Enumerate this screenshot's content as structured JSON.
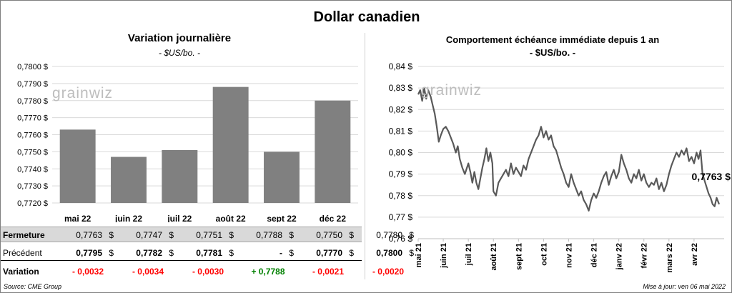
{
  "title": "Dollar canadien",
  "left_chart": {
    "title": "Variation  journalière",
    "subtitle": "- $US/bo. -",
    "watermark": "grainwiz"
  },
  "right_chart": {
    "title": "Comportement échéance immédiate depuis 1 an",
    "subtitle": "- $US/bo. -",
    "watermark": "grainwiz",
    "last_value_label": "0,7763 $"
  },
  "table": {
    "rows": [
      {
        "label": "Fermeture",
        "shaded": true,
        "values": [
          "0,7763",
          "0,7747",
          "0,7751",
          "0,7788",
          "0,7750",
          "0,7780"
        ]
      },
      {
        "label": "Précédent",
        "shaded": false,
        "values": [
          "0,7795",
          "0,7782",
          "0,7781",
          "-",
          "0,7770",
          "0,7800"
        ]
      }
    ],
    "currency": "$",
    "variation_label": "Variation",
    "variations": [
      "- 0,0032",
      "- 0,0034",
      "- 0,0030",
      "+ 0,7788",
      "- 0,0021",
      "- 0,0020"
    ]
  },
  "colors": {
    "bar": "#808080",
    "line": "#595959",
    "negative": "#ff0000",
    "positive": "#008000",
    "shaded_row": "#d9d9d9"
  },
  "footer": {
    "source": "Source: CME Group",
    "updated": "Mise à jour: ven 06 mai 2022"
  },
  "chart_data": [
    {
      "type": "bar",
      "categories": [
        "mai 22",
        "juin 22",
        "juil 22",
        "août 22",
        "sept 22",
        "déc 22"
      ],
      "values": [
        0.7763,
        0.7747,
        0.7751,
        0.7788,
        0.775,
        0.778
      ],
      "ylim": [
        0.772,
        0.78
      ],
      "yticks": [
        "0,7720 $",
        "0,7730 $",
        "0,7740 $",
        "0,7750 $",
        "0,7760 $",
        "0,7770 $",
        "0,7780 $",
        "0,7790 $",
        "0,7800 $"
      ],
      "grid": true
    },
    {
      "type": "line",
      "ylim": [
        0.76,
        0.84
      ],
      "yticks": [
        "0,76 $",
        "0,77 $",
        "0,78 $",
        "0,79 $",
        "0,80 $",
        "0,81 $",
        "0,82 $",
        "0,83 $",
        "0,84 $"
      ],
      "xticks": [
        "mai 21",
        "juin 21",
        "juil 21",
        "août 21",
        "sept 21",
        "oct 21",
        "nov 21",
        "déc 21",
        "janv 22",
        "févr 22",
        "mars 22",
        "avr 22"
      ],
      "x_range": [
        0,
        12.2
      ],
      "points": [
        [
          0.0,
          0.827
        ],
        [
          0.08,
          0.829
        ],
        [
          0.16,
          0.824
        ],
        [
          0.24,
          0.83
        ],
        [
          0.32,
          0.825
        ],
        [
          0.4,
          0.829
        ],
        [
          0.5,
          0.826
        ],
        [
          0.58,
          0.822
        ],
        [
          0.66,
          0.818
        ],
        [
          0.74,
          0.812
        ],
        [
          0.82,
          0.805
        ],
        [
          0.9,
          0.808
        ],
        [
          1.0,
          0.811
        ],
        [
          1.1,
          0.812
        ],
        [
          1.2,
          0.81
        ],
        [
          1.3,
          0.807
        ],
        [
          1.4,
          0.804
        ],
        [
          1.5,
          0.8
        ],
        [
          1.58,
          0.803
        ],
        [
          1.66,
          0.797
        ],
        [
          1.76,
          0.793
        ],
        [
          1.86,
          0.79
        ],
        [
          2.0,
          0.795
        ],
        [
          2.08,
          0.791
        ],
        [
          2.16,
          0.786
        ],
        [
          2.24,
          0.791
        ],
        [
          2.32,
          0.786
        ],
        [
          2.4,
          0.783
        ],
        [
          2.48,
          0.788
        ],
        [
          2.56,
          0.793
        ],
        [
          2.64,
          0.797
        ],
        [
          2.72,
          0.802
        ],
        [
          2.8,
          0.796
        ],
        [
          2.88,
          0.8
        ],
        [
          2.96,
          0.795
        ],
        [
          3.0,
          0.782
        ],
        [
          3.1,
          0.78
        ],
        [
          3.2,
          0.786
        ],
        [
          3.3,
          0.788
        ],
        [
          3.4,
          0.79
        ],
        [
          3.5,
          0.792
        ],
        [
          3.6,
          0.789
        ],
        [
          3.7,
          0.795
        ],
        [
          3.8,
          0.79
        ],
        [
          3.9,
          0.793
        ],
        [
          4.0,
          0.791
        ],
        [
          4.1,
          0.789
        ],
        [
          4.2,
          0.794
        ],
        [
          4.3,
          0.792
        ],
        [
          4.4,
          0.797
        ],
        [
          4.5,
          0.8
        ],
        [
          4.6,
          0.803
        ],
        [
          4.7,
          0.806
        ],
        [
          4.8,
          0.808
        ],
        [
          4.9,
          0.812
        ],
        [
          5.0,
          0.807
        ],
        [
          5.1,
          0.81
        ],
        [
          5.2,
          0.806
        ],
        [
          5.3,
          0.808
        ],
        [
          5.4,
          0.803
        ],
        [
          5.5,
          0.801
        ],
        [
          5.6,
          0.797
        ],
        [
          5.7,
          0.793
        ],
        [
          5.8,
          0.79
        ],
        [
          5.9,
          0.786
        ],
        [
          6.0,
          0.784
        ],
        [
          6.1,
          0.79
        ],
        [
          6.2,
          0.786
        ],
        [
          6.3,
          0.783
        ],
        [
          6.4,
          0.78
        ],
        [
          6.5,
          0.782
        ],
        [
          6.6,
          0.778
        ],
        [
          6.7,
          0.776
        ],
        [
          6.8,
          0.773
        ],
        [
          6.9,
          0.778
        ],
        [
          7.0,
          0.781
        ],
        [
          7.1,
          0.779
        ],
        [
          7.2,
          0.782
        ],
        [
          7.3,
          0.786
        ],
        [
          7.4,
          0.789
        ],
        [
          7.5,
          0.791
        ],
        [
          7.6,
          0.785
        ],
        [
          7.7,
          0.789
        ],
        [
          7.8,
          0.792
        ],
        [
          7.9,
          0.788
        ],
        [
          8.0,
          0.791
        ],
        [
          8.1,
          0.799
        ],
        [
          8.2,
          0.795
        ],
        [
          8.3,
          0.792
        ],
        [
          8.4,
          0.788
        ],
        [
          8.5,
          0.786
        ],
        [
          8.6,
          0.79
        ],
        [
          8.7,
          0.788
        ],
        [
          8.8,
          0.792
        ],
        [
          8.9,
          0.787
        ],
        [
          9.0,
          0.79
        ],
        [
          9.1,
          0.786
        ],
        [
          9.2,
          0.784
        ],
        [
          9.3,
          0.786
        ],
        [
          9.4,
          0.785
        ],
        [
          9.5,
          0.788
        ],
        [
          9.6,
          0.783
        ],
        [
          9.7,
          0.786
        ],
        [
          9.8,
          0.782
        ],
        [
          9.9,
          0.785
        ],
        [
          10.0,
          0.79
        ],
        [
          10.1,
          0.794
        ],
        [
          10.2,
          0.797
        ],
        [
          10.3,
          0.8
        ],
        [
          10.4,
          0.798
        ],
        [
          10.5,
          0.801
        ],
        [
          10.6,
          0.799
        ],
        [
          10.7,
          0.802
        ],
        [
          10.8,
          0.796
        ],
        [
          10.9,
          0.798
        ],
        [
          11.0,
          0.795
        ],
        [
          11.1,
          0.8
        ],
        [
          11.18,
          0.797
        ],
        [
          11.26,
          0.801
        ],
        [
          11.34,
          0.79
        ],
        [
          11.42,
          0.787
        ],
        [
          11.5,
          0.784
        ],
        [
          11.58,
          0.781
        ],
        [
          11.66,
          0.779
        ],
        [
          11.74,
          0.776
        ],
        [
          11.82,
          0.775
        ],
        [
          11.9,
          0.779
        ],
        [
          12.0,
          0.776
        ]
      ]
    }
  ]
}
